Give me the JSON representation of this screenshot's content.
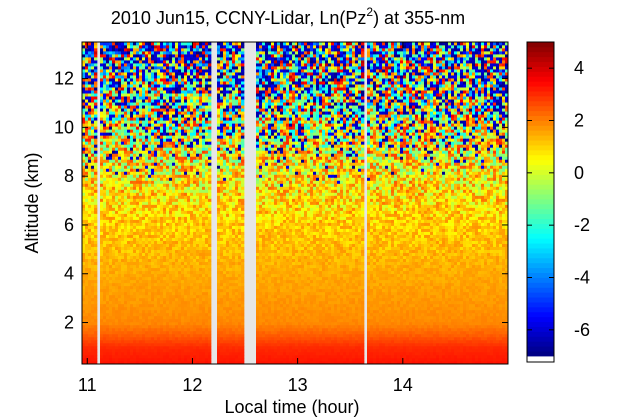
{
  "chart_data": {
    "type": "heatmap",
    "title": {
      "prefix": "2010 Jun15, CCNY-Lidar, Ln(Pz",
      "superscript": "2",
      "suffix": ") at 355-nm"
    },
    "xlabel": "Local time (hour)",
    "ylabel": "Altitude (km)",
    "xlim": [
      10.95,
      15.0
    ],
    "ylim": [
      0.3,
      13.5
    ],
    "xticks": [
      11,
      12,
      13,
      14
    ],
    "yticks": [
      2,
      4,
      6,
      8,
      10,
      12
    ],
    "colorbar": {
      "range": [
        -7,
        5
      ],
      "ticks": [
        4,
        2,
        0,
        -2,
        -4,
        -6
      ],
      "tick_labels": [
        "4",
        "2",
        "0",
        "-2",
        "-4",
        "-6"
      ],
      "colormap": "jet"
    },
    "data_gaps_hours": [
      [
        11.1,
        11.13
      ],
      [
        12.18,
        12.22
      ],
      [
        12.5,
        12.6
      ],
      [
        13.62,
        13.65
      ]
    ],
    "profile": {
      "altitude_km": [
        0.3,
        1.0,
        1.5,
        2.0,
        3.0,
        4.0,
        6.0,
        8.0,
        10.0,
        12.0,
        13.5
      ],
      "mean_value": [
        3.3,
        3.0,
        2.4,
        1.9,
        1.7,
        1.5,
        1.1,
        0.7,
        0.3,
        0.0,
        -0.3
      ],
      "noise_spread": [
        0.05,
        0.05,
        0.1,
        0.1,
        0.15,
        0.2,
        0.7,
        1.8,
        3.2,
        4.2,
        4.8
      ]
    }
  }
}
